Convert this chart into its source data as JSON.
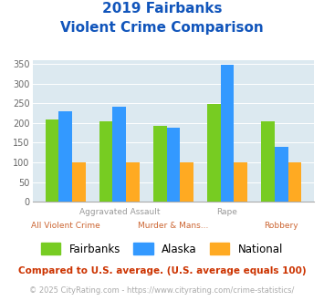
{
  "title_line1": "2019 Fairbanks",
  "title_line2": "Violent Crime Comparison",
  "categories": [
    "All Violent Crime",
    "Aggravated Assault",
    "Murder & Mans...",
    "Rape",
    "Robbery"
  ],
  "series": {
    "Fairbanks": [
      210,
      205,
      193,
      248,
      205
    ],
    "Alaska": [
      230,
      241,
      188,
      349,
      139
    ],
    "National": [
      100,
      100,
      100,
      100,
      100
    ]
  },
  "colors": {
    "Fairbanks": "#77cc22",
    "Alaska": "#3399ff",
    "National": "#ffaa22"
  },
  "ylim": [
    0,
    360
  ],
  "yticks": [
    0,
    50,
    100,
    150,
    200,
    250,
    300,
    350
  ],
  "bg_color": "#dce9f0",
  "title_color": "#1155bb",
  "footnote1": "Compared to U.S. average. (U.S. average equals 100)",
  "footnote2": "© 2025 CityRating.com - https://www.cityrating.com/crime-statistics/",
  "footnote1_color": "#cc3300",
  "footnote2_color": "#aaaaaa",
  "url_color": "#3399cc",
  "bar_width": 0.25
}
